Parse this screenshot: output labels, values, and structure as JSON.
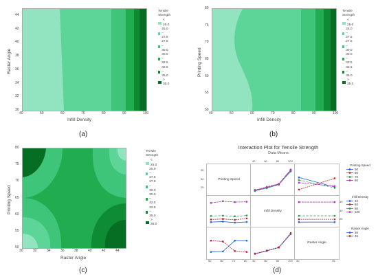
{
  "colors": {
    "lt25": "#92e4c1",
    "c25_275": "#5ed598",
    "c275_30": "#3fc57a",
    "c30_325": "#20ac4f",
    "c325_35": "#0d8c33",
    "gt35": "#066e22"
  },
  "legend": {
    "title": "Tensile Strength",
    "items": [
      "< 25.0",
      "25.0 – 27.5",
      "27.5 – 30.0",
      "30.0 – 32.5",
      "32.5 – 35.0",
      "> 35.0"
    ]
  },
  "captions": {
    "a": "(a)",
    "b": "(b)",
    "c": "(c)",
    "d": "(d)"
  },
  "chart_data": [
    {
      "type": "heatmap",
      "panel": "a",
      "xlabel": "Infill Density",
      "ylabel": "Raster Angle",
      "xlim": [
        40,
        100
      ],
      "ylim": [
        30,
        45
      ],
      "xticks": [
        "40",
        "50",
        "60",
        "70",
        "80",
        "90",
        "100"
      ],
      "yticks": [
        "30",
        "32",
        "34",
        "36",
        "38",
        "40",
        "42",
        "44"
      ],
      "boundaries_x": {
        "lt25_to_25_275_at_y30": 60,
        "lt25_to_25_275_at_y45": 58,
        "to_275_30": 83,
        "to_30_325": 90,
        "to_325_35": 95,
        "to_gt35": 97
      }
    },
    {
      "type": "heatmap",
      "panel": "b",
      "xlabel": "Infill Density",
      "ylabel": "Printing Speed",
      "xlim": [
        40,
        100
      ],
      "ylim": [
        50,
        80
      ],
      "xticks": [
        "40",
        "50",
        "60",
        "70",
        "80",
        "90",
        "100"
      ],
      "yticks": [
        "50",
        "55",
        "60",
        "65",
        "70",
        "75",
        "80"
      ]
    },
    {
      "type": "heatmap",
      "panel": "c",
      "xlabel": "Raster Angle",
      "ylabel": "Printing Speed",
      "xlim": [
        30,
        45
      ],
      "ylim": [
        50,
        80
      ],
      "xticks": [
        "30",
        "32",
        "34",
        "36",
        "38",
        "40",
        "42",
        "44"
      ],
      "yticks": [
        "50",
        "55",
        "60",
        "65",
        "70",
        "75",
        "80"
      ]
    },
    {
      "type": "line",
      "panel": "d",
      "title": "Interaction Plot for Tensile Strength",
      "subtitle": "Data Means",
      "factors": [
        {
          "name": "Printing Speed",
          "levels": [
            "50",
            "60",
            "70",
            "80"
          ]
        },
        {
          "name": "Infill Density",
          "levels": [
            "40",
            "60",
            "80",
            "100"
          ]
        },
        {
          "name": "Raster Angle",
          "levels": [
            "30",
            "45"
          ]
        }
      ],
      "legend_titles": [
        "Printing Speed",
        "Infill Density",
        "Raster Angle"
      ],
      "y_ticks": [
        "25",
        "30",
        "35"
      ],
      "series_colors": [
        "#1f5fd6",
        "#c0202a",
        "#1f9e3a",
        "#b030c0"
      ],
      "ID_by_PS": {
        "x": [
          "40",
          "60",
          "80",
          "100"
        ],
        "series": [
          {
            "name": "50",
            "values": [
              23.5,
              25.0,
              27.0,
              34.5
            ]
          },
          {
            "name": "60",
            "values": [
              23.8,
              25.3,
              27.2,
              35.5
            ]
          },
          {
            "name": "70",
            "values": [
              23.2,
              24.8,
              26.8,
              35.0
            ]
          },
          {
            "name": "80",
            "values": [
              23.6,
              25.6,
              27.3,
              35.2
            ]
          }
        ]
      },
      "RA_by_PS": {
        "x": [
          "30",
          "45"
        ],
        "series": [
          {
            "name": "50",
            "values": [
              31.0,
              25.5
            ]
          },
          {
            "name": "60",
            "values": [
              24.0,
              30.5
            ]
          },
          {
            "name": "70",
            "values": [
              29.5,
              25.0
            ]
          },
          {
            "name": "80",
            "values": [
              28.0,
              26.0
            ]
          }
        ]
      },
      "PS_by_ID": {
        "x": [
          "50",
          "60",
          "70",
          "80"
        ],
        "series": [
          {
            "name": "40",
            "values": [
              23.5,
              23.8,
              23.2,
              23.6
            ]
          },
          {
            "name": "60",
            "values": [
              25.0,
              25.3,
              24.8,
              25.6
            ]
          },
          {
            "name": "80",
            "values": [
              27.0,
              27.2,
              26.8,
              27.3
            ]
          },
          {
            "name": "100",
            "values": [
              34.5,
              35.5,
              35.0,
              35.2
            ]
          }
        ]
      },
      "RA_by_ID": {
        "x": [
          "30",
          "45"
        ],
        "series": [
          {
            "name": "40",
            "values": [
              23.5,
              23.5
            ]
          },
          {
            "name": "60",
            "values": [
              25.1,
              25.1
            ]
          },
          {
            "name": "80",
            "values": [
              27.1,
              27.1
            ]
          },
          {
            "name": "100",
            "values": [
              35.0,
              35.0
            ]
          }
        ]
      },
      "PS_by_RA": {
        "x": [
          "50",
          "60",
          "70",
          "80"
        ],
        "series": [
          {
            "name": "30",
            "values": [
              24.5,
              24.8,
              31.0,
              31.0
            ]
          },
          {
            "name": "45",
            "values": [
              31.0,
              30.5,
              25.0,
              24.5
            ]
          }
        ]
      },
      "ID_by_RA": {
        "x": [
          "40",
          "60",
          "80",
          "100"
        ],
        "series": [
          {
            "name": "30",
            "values": [
              23.4,
              25.1,
              27.0,
              34.8
            ]
          },
          {
            "name": "45",
            "values": [
              23.6,
              25.3,
              27.2,
              35.4
            ]
          }
        ]
      }
    }
  ]
}
